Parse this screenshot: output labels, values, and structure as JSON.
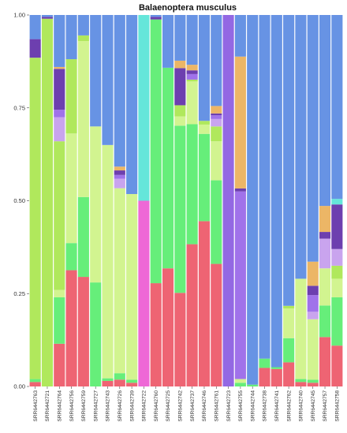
{
  "chart_data": {
    "type": "bar",
    "stacked": true,
    "normalized": true,
    "title": "Balaenoptera musculus",
    "xlabel": "",
    "ylabel": "",
    "ylim": [
      0,
      1
    ],
    "yticks": [
      "0.00",
      "0.25",
      "0.50",
      "0.75",
      "1.00"
    ],
    "categories": [
      "SRR6442763",
      "SRR6442721",
      "SRR6442764",
      "SRR6442756",
      "SRR6442759",
      "SRR6442727",
      "SRR6442743",
      "SRR6442726",
      "SRR6442739",
      "SRR6442722",
      "SRR6442760",
      "SRR6442725",
      "SRR6442742",
      "SRR6442737",
      "SRR6442746",
      "SRR6442761",
      "SRR6442723",
      "SRR6442755",
      "SRR6442744",
      "SRR6442738",
      "SRR6442741",
      "SRR6442762",
      "SRR6442740",
      "SRR6442745",
      "SRR6442757",
      "SRR6442758"
    ],
    "series": [
      {
        "color": "#ee6473",
        "values": [
          0.012,
          0,
          0.115,
          0.313,
          0.295,
          0,
          0.015,
          0.018,
          0.01,
          0,
          0.278,
          0.318,
          0.252,
          0.383,
          0.445,
          0.33,
          0,
          0,
          0,
          0.05,
          0.047,
          0.065,
          0.012,
          0.01,
          0.133,
          0.11
        ]
      },
      {
        "color": "#66ee7a",
        "values": [
          0.008,
          0,
          0.125,
          0.073,
          0.215,
          0.28,
          0.007,
          0.017,
          0.008,
          0,
          0.71,
          0.54,
          0.45,
          0.323,
          0.235,
          0.225,
          0,
          0.01,
          0.005,
          0.025,
          0.005,
          0.065,
          0.008,
          0.008,
          0.085,
          0.13
        ]
      },
      {
        "color": "#d2f490",
        "values": [
          0,
          0,
          0.02,
          0.295,
          0.42,
          0.42,
          0.628,
          0.488,
          0.5,
          0,
          0,
          0,
          0.025,
          0.115,
          0.025,
          0.105,
          0,
          0.01,
          0,
          0,
          0,
          0.08,
          0.27,
          0.163,
          0.1,
          0.05
        ]
      },
      {
        "color": "#b0e85c",
        "values": [
          0.865,
          0.99,
          0.4,
          0.2,
          0.015,
          0,
          0,
          0,
          0,
          0,
          0,
          0,
          0.03,
          0.005,
          0.01,
          0.04,
          0,
          0,
          0,
          0,
          0,
          0.007,
          0,
          0,
          0,
          0.035
        ]
      },
      {
        "color": "#c9a4ee",
        "values": [
          0,
          0,
          0.065,
          0,
          0,
          0,
          0,
          0.025,
          0,
          0,
          0,
          0,
          0,
          0,
          0,
          0.02,
          0,
          0,
          0,
          0,
          0,
          0,
          0,
          0.02,
          0.08,
          0.045
        ]
      },
      {
        "color": "#a072ea",
        "values": [
          0,
          0,
          0.02,
          0,
          0,
          0,
          0,
          0.01,
          0,
          0,
          0,
          0,
          0,
          0.015,
          0,
          0.01,
          0,
          0.505,
          0,
          0,
          0,
          0,
          0,
          0.045,
          0,
          0
        ]
      },
      {
        "color": "#6d3faf",
        "values": [
          0.05,
          0.005,
          0.11,
          0,
          0,
          0,
          0,
          0.012,
          0,
          0,
          0.007,
          0,
          0.1,
          0.01,
          0,
          0.005,
          0,
          0.008,
          0,
          0,
          0,
          0,
          0,
          0.025,
          0.018,
          0.12
        ]
      },
      {
        "color": "#ee68d6",
        "values": [
          0,
          0,
          0,
          0,
          0,
          0,
          0,
          0,
          0,
          0.5,
          0,
          0,
          0,
          0,
          0,
          0,
          0,
          0,
          0,
          0,
          0,
          0,
          0,
          0,
          0,
          0
        ]
      },
      {
        "color": "#65e6da",
        "values": [
          0,
          0,
          0,
          0,
          0,
          0,
          0,
          0,
          0,
          0.5,
          0,
          0,
          0,
          0,
          0,
          0,
          0,
          0,
          0,
          0,
          0,
          0,
          0,
          0,
          0,
          0.015
        ]
      },
      {
        "color": "#9368e3",
        "values": [
          0,
          0,
          0,
          0,
          0,
          0,
          0,
          0,
          0,
          0,
          0,
          0,
          0,
          0,
          0,
          0,
          1.0,
          0,
          0,
          0,
          0,
          0,
          0,
          0,
          0,
          0
        ]
      },
      {
        "color": "#ecb666",
        "values": [
          0,
          0,
          0.005,
          0,
          0,
          0,
          0,
          0.01,
          0,
          0,
          0,
          0,
          0.02,
          0.015,
          0,
          0.02,
          0,
          0.355,
          0,
          0,
          0,
          0,
          0,
          0.065,
          0.07,
          0
        ]
      },
      {
        "color": "#6793e4",
        "values": [
          0.065,
          0.005,
          0.14,
          0.119,
          0.055,
          0.3,
          0.35,
          0.4,
          0.482,
          0,
          0.005,
          0.142,
          0.123,
          0.134,
          0.285,
          0.245,
          0,
          0.112,
          0.995,
          0.925,
          0.948,
          0.783,
          0.71,
          0.664,
          0.514,
          0.495
        ]
      }
    ]
  }
}
